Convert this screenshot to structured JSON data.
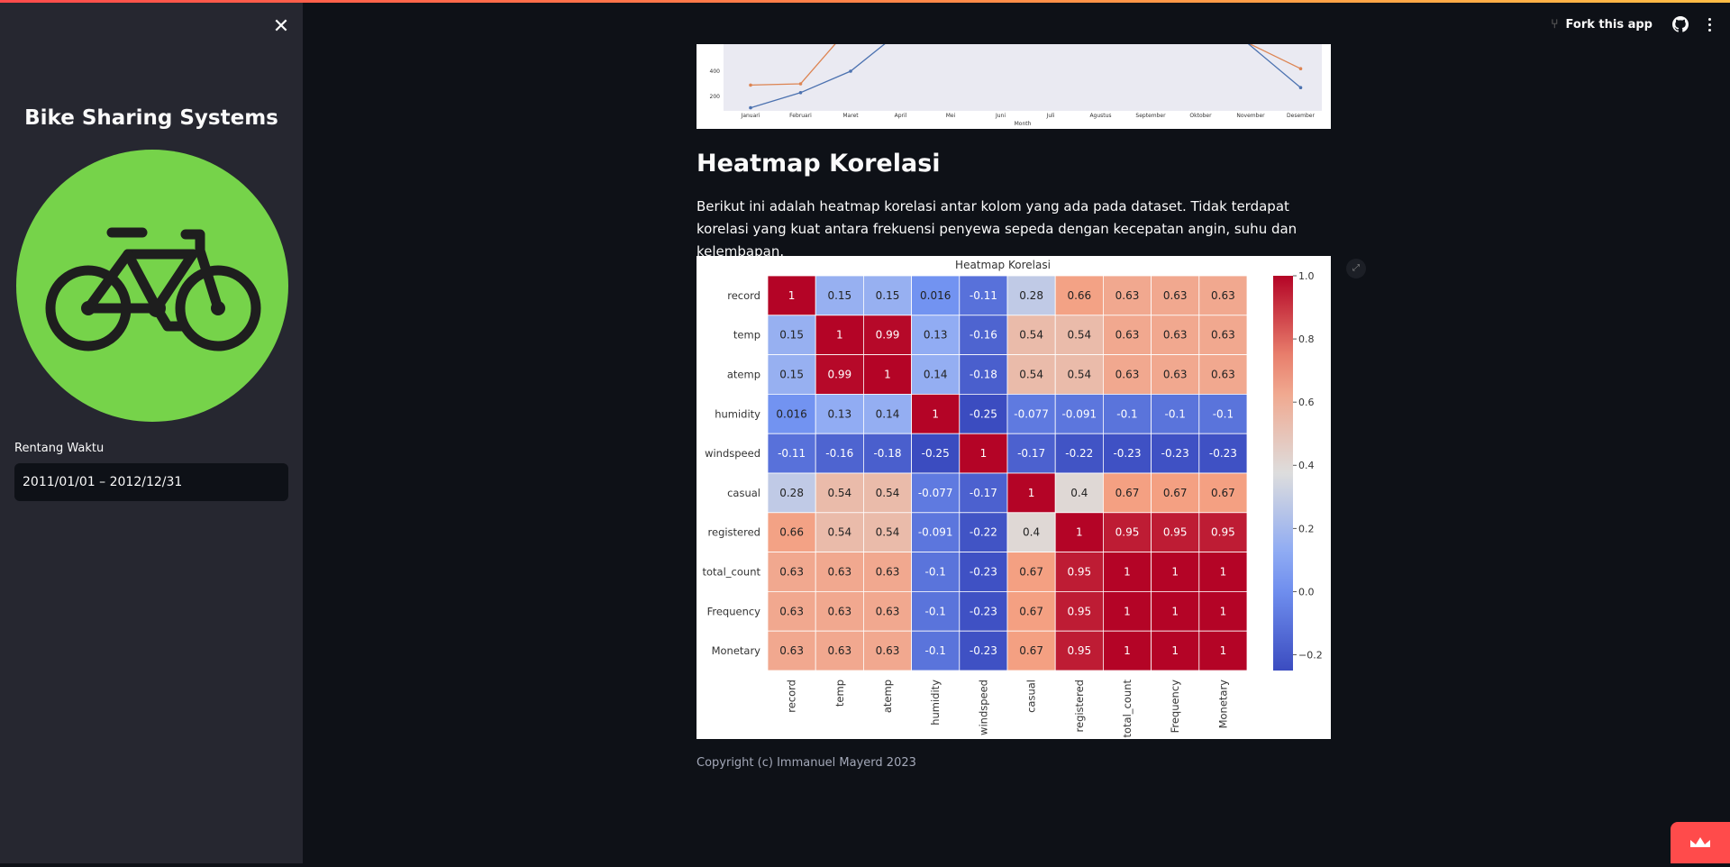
{
  "sidebar": {
    "title": "Bike Sharing Systems",
    "date_label": "Rentang Waktu",
    "date_value": "2011/01/01 – 2012/12/31",
    "logo_icon": "bicycle-icon",
    "logo_color": "#76d34a"
  },
  "toolbar": {
    "fork_label": "Fork this app",
    "github_icon": "github-icon",
    "more_icon": "kebab-menu-icon"
  },
  "main": {
    "heading": "Heatmap Korelasi",
    "paragraph": "Berikut ini adalah heatmap korelasi antar kolom yang ada pada dataset. Tidak terdapat korelasi yang kuat antara frekuensi penyewa sepeda dengan kecepatan angin, suhu dan kelembapan.",
    "copyright": "Copyright (c) Immanuel Mayerd 2023"
  },
  "chart_data": [
    {
      "type": "line",
      "partially_visible": true,
      "xlabel": "Month",
      "categories": [
        "Januari",
        "Februari",
        "Maret",
        "April",
        "Mei",
        "Juni",
        "Juli",
        "Agustus",
        "September",
        "Oktober",
        "November",
        "Desember"
      ],
      "y_ticks": [
        "200",
        "400"
      ],
      "series": [
        {
          "color": "#dd8452",
          "visible_points": [
            [
              0,
              290
            ],
            [
              1,
              300
            ]
          ],
          "visible_end_points": [
            [
              11,
              420
            ]
          ]
        },
        {
          "color": "#4c72b0",
          "visible_points": [
            [
              0,
              110
            ],
            [
              1,
              230
            ],
            [
              2,
              400
            ]
          ],
          "visible_end_points": [
            [
              11,
              270
            ]
          ]
        }
      ]
    },
    {
      "type": "heatmap",
      "title": "Heatmap Korelasi",
      "labels": [
        "record",
        "temp",
        "atemp",
        "humidity",
        "windspeed",
        "casual",
        "registered",
        "total_count",
        "Frequency",
        "Monetary"
      ],
      "matrix": [
        [
          1,
          0.15,
          0.15,
          0.016,
          -0.11,
          0.28,
          0.66,
          0.63,
          0.63,
          0.63
        ],
        [
          0.15,
          1,
          0.99,
          0.13,
          -0.16,
          0.54,
          0.54,
          0.63,
          0.63,
          0.63
        ],
        [
          0.15,
          0.99,
          1,
          0.14,
          -0.18,
          0.54,
          0.54,
          0.63,
          0.63,
          0.63
        ],
        [
          0.016,
          0.13,
          0.14,
          1,
          -0.25,
          -0.077,
          -0.091,
          -0.1,
          -0.1,
          -0.1
        ],
        [
          -0.11,
          -0.16,
          -0.18,
          -0.25,
          1,
          -0.17,
          -0.22,
          -0.23,
          -0.23,
          -0.23
        ],
        [
          0.28,
          0.54,
          0.54,
          -0.077,
          -0.17,
          1,
          0.4,
          0.67,
          0.67,
          0.67
        ],
        [
          0.66,
          0.54,
          0.54,
          -0.091,
          -0.22,
          0.4,
          1,
          0.95,
          0.95,
          0.95
        ],
        [
          0.63,
          0.63,
          0.63,
          -0.1,
          -0.23,
          0.67,
          0.95,
          1,
          1,
          1
        ],
        [
          0.63,
          0.63,
          0.63,
          -0.1,
          -0.23,
          0.67,
          0.95,
          1,
          1,
          1
        ],
        [
          0.63,
          0.63,
          0.63,
          -0.1,
          -0.23,
          0.67,
          0.95,
          1,
          1,
          1
        ]
      ],
      "colorbar_ticks": [
        "1.0",
        "0.8",
        "0.6",
        "0.4",
        "0.2",
        "0.0",
        "−0.2"
      ],
      "colorbar_range": [
        -0.25,
        1.0
      ],
      "colormap": "coolwarm"
    }
  ]
}
